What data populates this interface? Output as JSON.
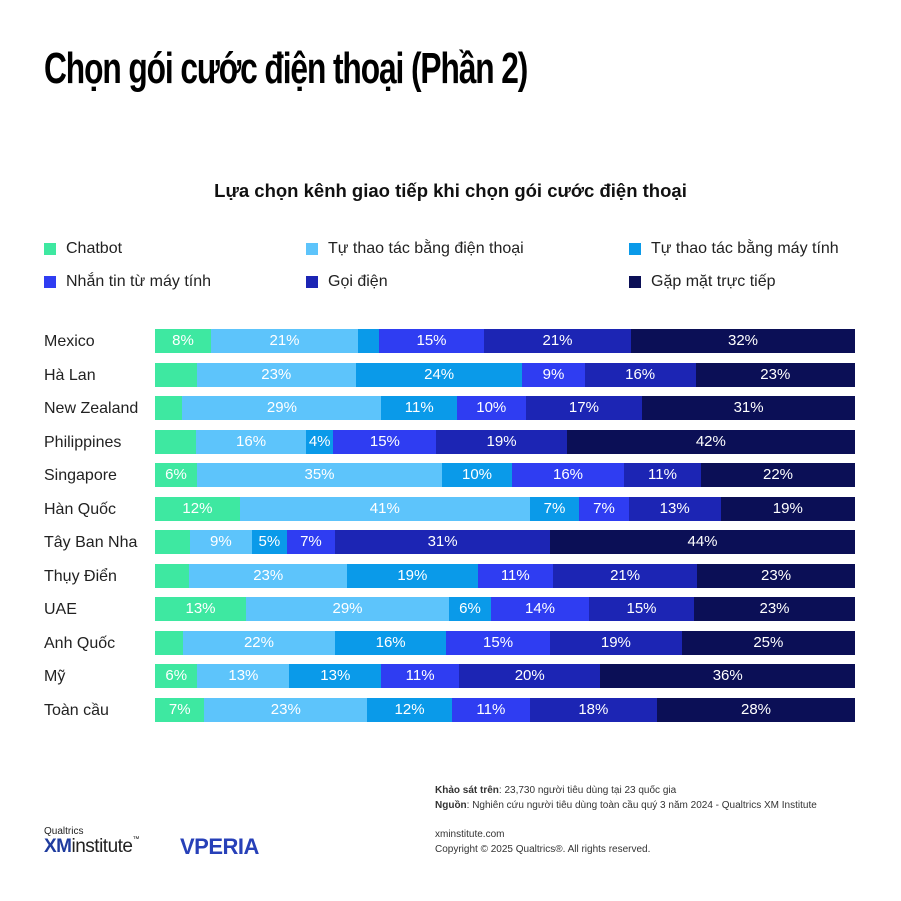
{
  "title": "Chọn gói cước điện thoại (Phần 2)",
  "chart_data": {
    "type": "bar",
    "orientation": "horizontal",
    "stacked": true,
    "title": "Lựa chọn kênh giao tiếp khi chọn gói cước điện thoại",
    "categories": [
      "Mexico",
      "Hà Lan",
      "New Zealand",
      "Philippines",
      "Singapore",
      "Hàn Quốc",
      "Tây Ban Nha",
      "Thụy Điển",
      "UAE",
      "Anh Quốc",
      "Mỹ",
      "Toàn cầu"
    ],
    "series": [
      {
        "name": "Chatbot",
        "color": "#3ee8a1",
        "values": [
          8,
          6,
          4,
          6,
          6,
          12,
          5,
          5,
          13,
          4,
          6,
          7
        ]
      },
      {
        "name": "Tự thao tác bằng điện thoại",
        "color": "#5dc4fb",
        "values": [
          21,
          23,
          29,
          16,
          35,
          41,
          9,
          23,
          29,
          22,
          13,
          23
        ]
      },
      {
        "name": "Tự thao tác bằng máy tính",
        "color": "#0a9ae9",
        "values": [
          3,
          24,
          11,
          4,
          10,
          7,
          5,
          19,
          6,
          16,
          13,
          12
        ]
      },
      {
        "name": "Nhắn tin từ máy tính",
        "color": "#2f3df2",
        "values": [
          15,
          9,
          10,
          15,
          16,
          7,
          7,
          11,
          14,
          15,
          11,
          11
        ]
      },
      {
        "name": "Gọi điện",
        "color": "#1c25b4",
        "values": [
          21,
          16,
          17,
          19,
          11,
          13,
          31,
          21,
          15,
          19,
          20,
          18
        ]
      },
      {
        "name": "Gặp mặt trực tiếp",
        "color": "#0b0f56",
        "values": [
          32,
          23,
          31,
          42,
          22,
          19,
          44,
          23,
          23,
          25,
          36,
          28
        ]
      }
    ],
    "labels": [
      [
        "8%",
        "21%",
        "",
        "15%",
        "21%",
        "32%"
      ],
      [
        "",
        "23%",
        "24%",
        "9%",
        "16%",
        "23%"
      ],
      [
        "",
        "29%",
        "11%",
        "10%",
        "17%",
        "31%"
      ],
      [
        "",
        "16%",
        "4%",
        "15%",
        "19%",
        "42%"
      ],
      [
        "6%",
        "35%",
        "10%",
        "16%",
        "11%",
        "22%"
      ],
      [
        "12%",
        "41%",
        "7%",
        "7%",
        "13%",
        "19%"
      ],
      [
        "",
        "9%",
        "5%",
        "7%",
        "31%",
        "44%"
      ],
      [
        "",
        "23%",
        "19%",
        "11%",
        "21%",
        "23%"
      ],
      [
        "13%",
        "29%",
        "6%",
        "14%",
        "15%",
        "23%"
      ],
      [
        "",
        "22%",
        "16%",
        "15%",
        "19%",
        "25%"
      ],
      [
        "6%",
        "13%",
        "13%",
        "11%",
        "20%",
        "36%"
      ],
      [
        "7%",
        "23%",
        "12%",
        "11%",
        "18%",
        "28%"
      ]
    ],
    "xlim": [
      0,
      100
    ],
    "legend_position": "top"
  },
  "footer": {
    "survey_label": "Khảo sát trên",
    "survey_text": ": 23,730 người tiêu dùng tại 23 quốc gia",
    "source_label": "Nguồn",
    "source_text": ": Nghiên cứu người tiêu dùng toàn cầu quý 3 năm 2024 - Qualtrics XM Institute",
    "website": "xminstitute.com",
    "copyright": "Copyright © 2025 Qualtrics®. All rights reserved."
  },
  "logos": {
    "qualtrics": "Qualtrics",
    "xm": "XM",
    "institute": "institute",
    "tm": "™",
    "vperia": "VPERIA"
  }
}
